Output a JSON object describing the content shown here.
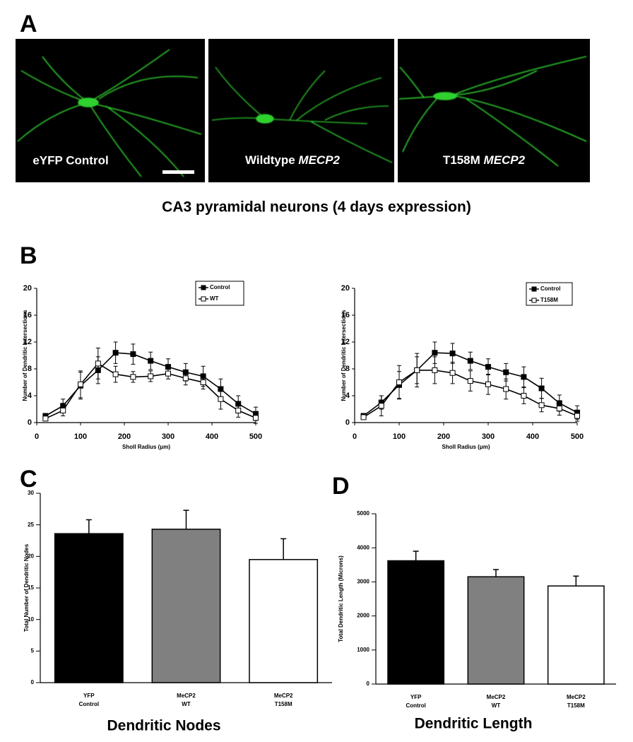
{
  "panel_labels": [
    "A",
    "B",
    "C",
    "D"
  ],
  "panel_a": {
    "images": [
      {
        "label": "eYFP Control"
      },
      {
        "label": "Wildtype",
        "gene": "MECP2"
      },
      {
        "label": "T158M",
        "gene": "MECP2"
      }
    ],
    "caption": "CA3 pyramidal neurons (4 days expression)"
  },
  "chart_data": [
    {
      "type": "line",
      "x_label": "Sholl Radius (μm)",
      "y_label": "Number of Dendritic Intersections",
      "x": [
        20,
        60,
        100,
        140,
        180,
        220,
        260,
        300,
        340,
        380,
        420,
        460,
        500
      ],
      "xlim": [
        0,
        500
      ],
      "xticks": [
        0,
        100,
        200,
        300,
        400,
        500
      ],
      "ylim": [
        0,
        20
      ],
      "yticks": [
        0,
        4,
        8,
        12,
        16,
        20
      ],
      "legend": "upper right",
      "series": [
        {
          "name": "Control",
          "color": "#000000",
          "marker": "filled",
          "values": [
            1.0,
            2.5,
            5.5,
            7.8,
            10.4,
            10.2,
            9.2,
            8.3,
            7.5,
            6.9,
            5.0,
            2.8,
            1.3
          ],
          "errors": [
            0.3,
            1.0,
            2.0,
            2.0,
            1.6,
            1.5,
            1.3,
            1.2,
            1.3,
            1.5,
            1.5,
            1.2,
            1.0
          ]
        },
        {
          "name": "WT",
          "color": "#000000",
          "marker": "open",
          "values": [
            0.6,
            1.8,
            5.7,
            8.8,
            7.2,
            6.8,
            6.9,
            7.3,
            6.6,
            6.0,
            3.5,
            1.8,
            0.7
          ],
          "errors": [
            0.3,
            0.8,
            2.0,
            2.3,
            1.2,
            0.8,
            0.8,
            0.8,
            1.0,
            1.0,
            1.5,
            1.0,
            0.8
          ]
        }
      ]
    },
    {
      "type": "line",
      "x_label": "Sholl Radius (μm)",
      "y_label": "Number of Dendritic Intersections",
      "x": [
        20,
        60,
        100,
        140,
        180,
        220,
        260,
        300,
        340,
        380,
        420,
        460,
        500
      ],
      "xlim": [
        0,
        500
      ],
      "xticks": [
        0,
        100,
        200,
        300,
        400,
        500
      ],
      "ylim": [
        0,
        20
      ],
      "yticks": [
        0,
        4,
        8,
        12,
        16,
        20
      ],
      "legend": "upper right",
      "series": [
        {
          "name": "Control",
          "color": "#000000",
          "marker": "filled",
          "values": [
            1.0,
            3.0,
            5.6,
            7.8,
            10.4,
            10.3,
            9.2,
            8.3,
            7.5,
            6.8,
            5.1,
            2.9,
            1.5
          ],
          "errors": [
            0.3,
            1.0,
            2.0,
            2.0,
            1.6,
            1.5,
            1.3,
            1.2,
            1.3,
            1.5,
            1.5,
            1.2,
            1.0
          ]
        },
        {
          "name": "T158M",
          "color": "#000000",
          "marker": "open",
          "values": [
            0.8,
            2.5,
            6.0,
            7.8,
            7.8,
            7.4,
            6.2,
            5.7,
            5.0,
            4.0,
            2.6,
            2.1,
            1.0
          ],
          "errors": [
            0.3,
            1.5,
            2.5,
            2.5,
            2.0,
            1.6,
            1.5,
            1.5,
            1.5,
            1.2,
            1.0,
            1.0,
            0.8
          ]
        }
      ]
    },
    {
      "type": "bar",
      "title": "Dendritic Nodes",
      "y_label": "Total Number of Dendritic Nodes",
      "categories": [
        [
          "YFP",
          "Control"
        ],
        [
          "MeCP2",
          "WT"
        ],
        [
          "MeCP2",
          "T158M"
        ]
      ],
      "values": [
        23.6,
        24.3,
        19.5
      ],
      "errors": [
        2.2,
        3.0,
        3.3
      ],
      "colors": [
        "#000000",
        "#808080",
        "#ffffff"
      ],
      "ylim": [
        0,
        30
      ],
      "yticks": [
        0,
        5,
        10,
        15,
        20,
        25,
        30
      ]
    },
    {
      "type": "bar",
      "title": "Dendritic Length",
      "y_label": "Total Dendritic Length (Microns)",
      "categories": [
        [
          "YFP",
          "Control"
        ],
        [
          "MeCP2",
          "WT"
        ],
        [
          "MeCP2",
          "T158M"
        ]
      ],
      "values": [
        3620,
        3150,
        2880
      ],
      "errors": [
        280,
        210,
        290
      ],
      "colors": [
        "#000000",
        "#808080",
        "#ffffff"
      ],
      "ylim": [
        0,
        5000
      ],
      "yticks": [
        0,
        1000,
        2000,
        3000,
        4000,
        5000
      ]
    }
  ]
}
